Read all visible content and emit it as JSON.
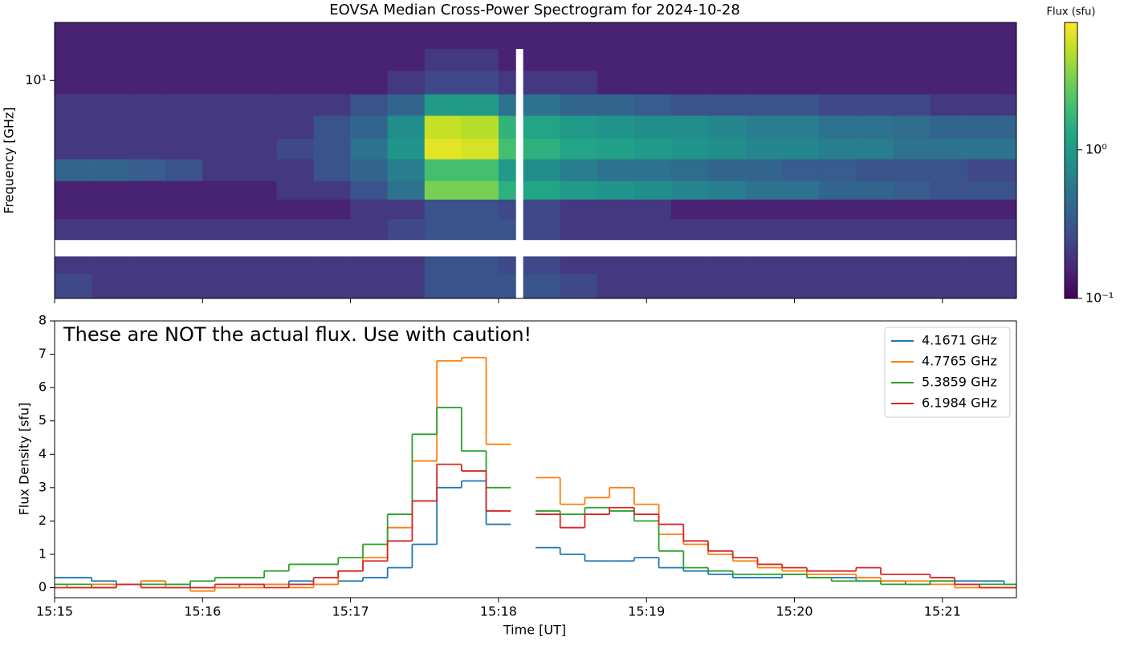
{
  "chart_data": [
    {
      "type": "heatmap",
      "title": "EOVSA Median Cross-Power Spectrogram for 2024-10-28",
      "ylabel": "Frequency [GHz]",
      "ylog": true,
      "ylim": [
        5.2,
        11.9
      ],
      "yticks": [
        {
          "value": 10,
          "label": "10¹"
        }
      ],
      "xlim": [
        0,
        390
      ],
      "x_bins": [
        0,
        15,
        30,
        45,
        60,
        75,
        90,
        105,
        120,
        135,
        150,
        165,
        180,
        187,
        190,
        205,
        220,
        235,
        250,
        265,
        280,
        295,
        310,
        325,
        340,
        355,
        370,
        385,
        390
      ],
      "y_bins": [
        5.2,
        5.6,
        5.9,
        6.2,
        6.6,
        7.0,
        7.4,
        7.9,
        8.4,
        9.0,
        9.6,
        10.3,
        11.0,
        11.9
      ],
      "z": [
        [
          0.25,
          0.2,
          0.2,
          0.2,
          0.2,
          0.2,
          0.2,
          0.2,
          0.2,
          0.2,
          0.3,
          0.3,
          0.3,
          null,
          0.3,
          0.25,
          0.2,
          0.2,
          0.2,
          0.2,
          0.2,
          0.2,
          0.2,
          0.2,
          0.2,
          0.2,
          0.2,
          0.2
        ],
        [
          0.2,
          0.2,
          0.2,
          0.2,
          0.2,
          0.2,
          0.2,
          0.2,
          0.2,
          0.2,
          0.3,
          0.3,
          0.25,
          null,
          0.25,
          0.2,
          0.2,
          0.2,
          0.2,
          0.2,
          0.2,
          0.2,
          0.2,
          0.2,
          0.2,
          0.2,
          0.2,
          0.2
        ],
        [
          null,
          null,
          null,
          null,
          null,
          null,
          null,
          null,
          null,
          null,
          null,
          null,
          null,
          null,
          null,
          null,
          null,
          null,
          null,
          null,
          null,
          null,
          null,
          null,
          null,
          null,
          null,
          null
        ],
        [
          0.2,
          0.2,
          0.2,
          0.2,
          0.2,
          0.2,
          0.2,
          0.2,
          0.2,
          0.25,
          0.3,
          0.3,
          0.3,
          null,
          0.25,
          0.2,
          0.2,
          0.2,
          0.2,
          0.2,
          0.2,
          0.2,
          0.2,
          0.2,
          0.2,
          0.2,
          0.2,
          0.2
        ],
        [
          0.15,
          0.15,
          0.15,
          0.15,
          0.15,
          0.15,
          0.15,
          0.15,
          0.2,
          0.2,
          0.3,
          0.3,
          0.25,
          null,
          0.25,
          0.2,
          0.2,
          0.2,
          0.15,
          0.15,
          0.15,
          0.15,
          0.15,
          0.15,
          0.15,
          0.15,
          0.15,
          0.15
        ],
        [
          0.15,
          0.15,
          0.15,
          0.15,
          0.15,
          0.15,
          0.2,
          0.2,
          0.3,
          0.5,
          3.0,
          3.0,
          1.5,
          null,
          1.2,
          1.0,
          0.9,
          0.8,
          0.7,
          0.6,
          0.5,
          0.5,
          0.4,
          0.4,
          0.35,
          0.3,
          0.3,
          0.3
        ],
        [
          0.4,
          0.4,
          0.35,
          0.3,
          0.2,
          0.2,
          0.2,
          0.3,
          0.4,
          0.6,
          2.0,
          2.0,
          1.0,
          null,
          0.8,
          0.6,
          0.5,
          0.5,
          0.45,
          0.4,
          0.4,
          0.35,
          0.35,
          0.3,
          0.3,
          0.3,
          0.25,
          0.25
        ],
        [
          0.2,
          0.2,
          0.2,
          0.2,
          0.2,
          0.2,
          0.25,
          0.3,
          0.5,
          0.9,
          6.0,
          5.5,
          2.0,
          null,
          1.5,
          1.2,
          1.1,
          1.0,
          0.9,
          0.8,
          0.7,
          0.7,
          0.6,
          0.6,
          0.5,
          0.5,
          0.5,
          0.5
        ],
        [
          0.2,
          0.2,
          0.2,
          0.2,
          0.2,
          0.2,
          0.2,
          0.3,
          0.4,
          0.8,
          5.0,
          4.5,
          1.6,
          null,
          1.2,
          1.0,
          0.9,
          0.8,
          0.8,
          0.7,
          0.6,
          0.6,
          0.5,
          0.5,
          0.45,
          0.4,
          0.4,
          0.4
        ],
        [
          0.2,
          0.2,
          0.2,
          0.2,
          0.2,
          0.2,
          0.2,
          0.2,
          0.3,
          0.4,
          1.0,
          1.0,
          0.5,
          null,
          0.5,
          0.4,
          0.4,
          0.35,
          0.3,
          0.3,
          0.3,
          0.3,
          0.25,
          0.25,
          0.25,
          0.2,
          0.2,
          0.2
        ],
        [
          0.15,
          0.15,
          0.15,
          0.15,
          0.15,
          0.15,
          0.15,
          0.15,
          0.15,
          0.2,
          0.25,
          0.25,
          0.2,
          null,
          0.2,
          0.2,
          0.15,
          0.15,
          0.15,
          0.15,
          0.15,
          0.15,
          0.15,
          0.15,
          0.15,
          0.15,
          0.15,
          0.15
        ],
        [
          0.15,
          0.15,
          0.15,
          0.15,
          0.15,
          0.15,
          0.15,
          0.15,
          0.15,
          0.15,
          0.2,
          0.2,
          0.15,
          null,
          0.15,
          0.15,
          0.15,
          0.15,
          0.15,
          0.15,
          0.15,
          0.15,
          0.15,
          0.15,
          0.15,
          0.15,
          0.15,
          0.15
        ],
        [
          0.15,
          0.15,
          0.15,
          0.15,
          0.15,
          0.15,
          0.15,
          0.15,
          0.15,
          0.15,
          0.15,
          0.15,
          0.15,
          0.15,
          0.15,
          0.15,
          0.15,
          0.15,
          0.15,
          0.15,
          0.15,
          0.15,
          0.15,
          0.15,
          0.15,
          0.15,
          0.15,
          0.15
        ]
      ],
      "colormap": "viridis",
      "color_log": true,
      "clim": [
        0.1,
        7.2
      ],
      "cticks": [
        {
          "value": 0.1,
          "label": "10⁻¹"
        },
        {
          "value": 1,
          "label": "10⁰"
        }
      ],
      "colorbar_label": "Flux (sfu)"
    },
    {
      "type": "line",
      "annotation": "These are NOT the actual flux. Use with caution!",
      "xlabel": "Time [UT]",
      "ylabel": "Flux Density [sfu]",
      "drawstyle": "steps-mid",
      "legend": "upper right",
      "xlim": [
        0,
        390
      ],
      "xticks": [
        {
          "value": 0,
          "label": "15:15"
        },
        {
          "value": 60,
          "label": "15:16"
        },
        {
          "value": 120,
          "label": "15:17"
        },
        {
          "value": 180,
          "label": "15:18"
        },
        {
          "value": 240,
          "label": "15:19"
        },
        {
          "value": 300,
          "label": "15:20"
        },
        {
          "value": 360,
          "label": "15:21"
        }
      ],
      "ylim": [
        -0.3,
        8
      ],
      "yticks": [
        0,
        1,
        2,
        3,
        4,
        5,
        6,
        7,
        8
      ],
      "x": [
        0,
        10,
        20,
        30,
        40,
        50,
        60,
        70,
        80,
        90,
        100,
        110,
        120,
        130,
        140,
        150,
        160,
        170,
        180,
        190,
        200,
        210,
        220,
        230,
        240,
        250,
        260,
        270,
        280,
        290,
        300,
        310,
        320,
        330,
        340,
        350,
        360,
        370,
        380,
        390
      ],
      "series": [
        {
          "name": "4.1671 GHz",
          "color": "#1f77b4",
          "values": [
            0.3,
            0.3,
            0.2,
            0.1,
            0.2,
            0.1,
            0.0,
            0.0,
            0.1,
            0.1,
            0.2,
            0.1,
            0.2,
            0.3,
            0.6,
            1.3,
            3.0,
            3.2,
            1.9,
            null,
            1.2,
            1.0,
            0.8,
            0.8,
            0.9,
            0.6,
            0.5,
            0.4,
            0.3,
            0.3,
            0.4,
            0.3,
            0.3,
            0.2,
            0.2,
            0.1,
            0.2,
            0.2,
            0.2,
            0.1
          ]
        },
        {
          "name": "4.7765 GHz",
          "color": "#ff7f0e",
          "values": [
            0.1,
            0.0,
            0.1,
            0.1,
            0.2,
            0.0,
            -0.1,
            0.0,
            0.0,
            0.1,
            0.0,
            0.1,
            0.5,
            0.9,
            1.8,
            3.8,
            6.8,
            6.9,
            4.3,
            null,
            3.3,
            2.5,
            2.7,
            3.0,
            2.5,
            1.6,
            1.3,
            1.0,
            0.8,
            0.6,
            0.5,
            0.4,
            0.4,
            0.3,
            0.2,
            0.2,
            0.1,
            0.0,
            0.0,
            0.0
          ]
        },
        {
          "name": "5.3859 GHz",
          "color": "#2ca02c",
          "values": [
            0.1,
            0.1,
            0.0,
            0.1,
            0.1,
            0.1,
            0.2,
            0.3,
            0.3,
            0.5,
            0.7,
            0.7,
            0.9,
            1.3,
            2.2,
            4.6,
            5.4,
            4.1,
            3.0,
            null,
            2.3,
            2.2,
            2.4,
            2.3,
            2.0,
            1.1,
            0.6,
            0.5,
            0.4,
            0.4,
            0.4,
            0.3,
            0.2,
            0.2,
            0.1,
            0.1,
            0.2,
            0.1,
            0.1,
            0.1
          ]
        },
        {
          "name": "6.1984 GHz",
          "color": "#d62728",
          "values": [
            0.0,
            0.0,
            0.0,
            0.1,
            0.0,
            0.0,
            0.0,
            0.1,
            0.1,
            0.0,
            0.1,
            0.3,
            0.5,
            0.8,
            1.4,
            2.6,
            3.7,
            3.5,
            2.3,
            null,
            2.2,
            1.8,
            2.2,
            2.4,
            2.2,
            1.9,
            1.4,
            1.1,
            0.9,
            0.7,
            0.6,
            0.5,
            0.5,
            0.6,
            0.4,
            0.4,
            0.3,
            0.1,
            0.0,
            0.0
          ]
        }
      ]
    }
  ]
}
